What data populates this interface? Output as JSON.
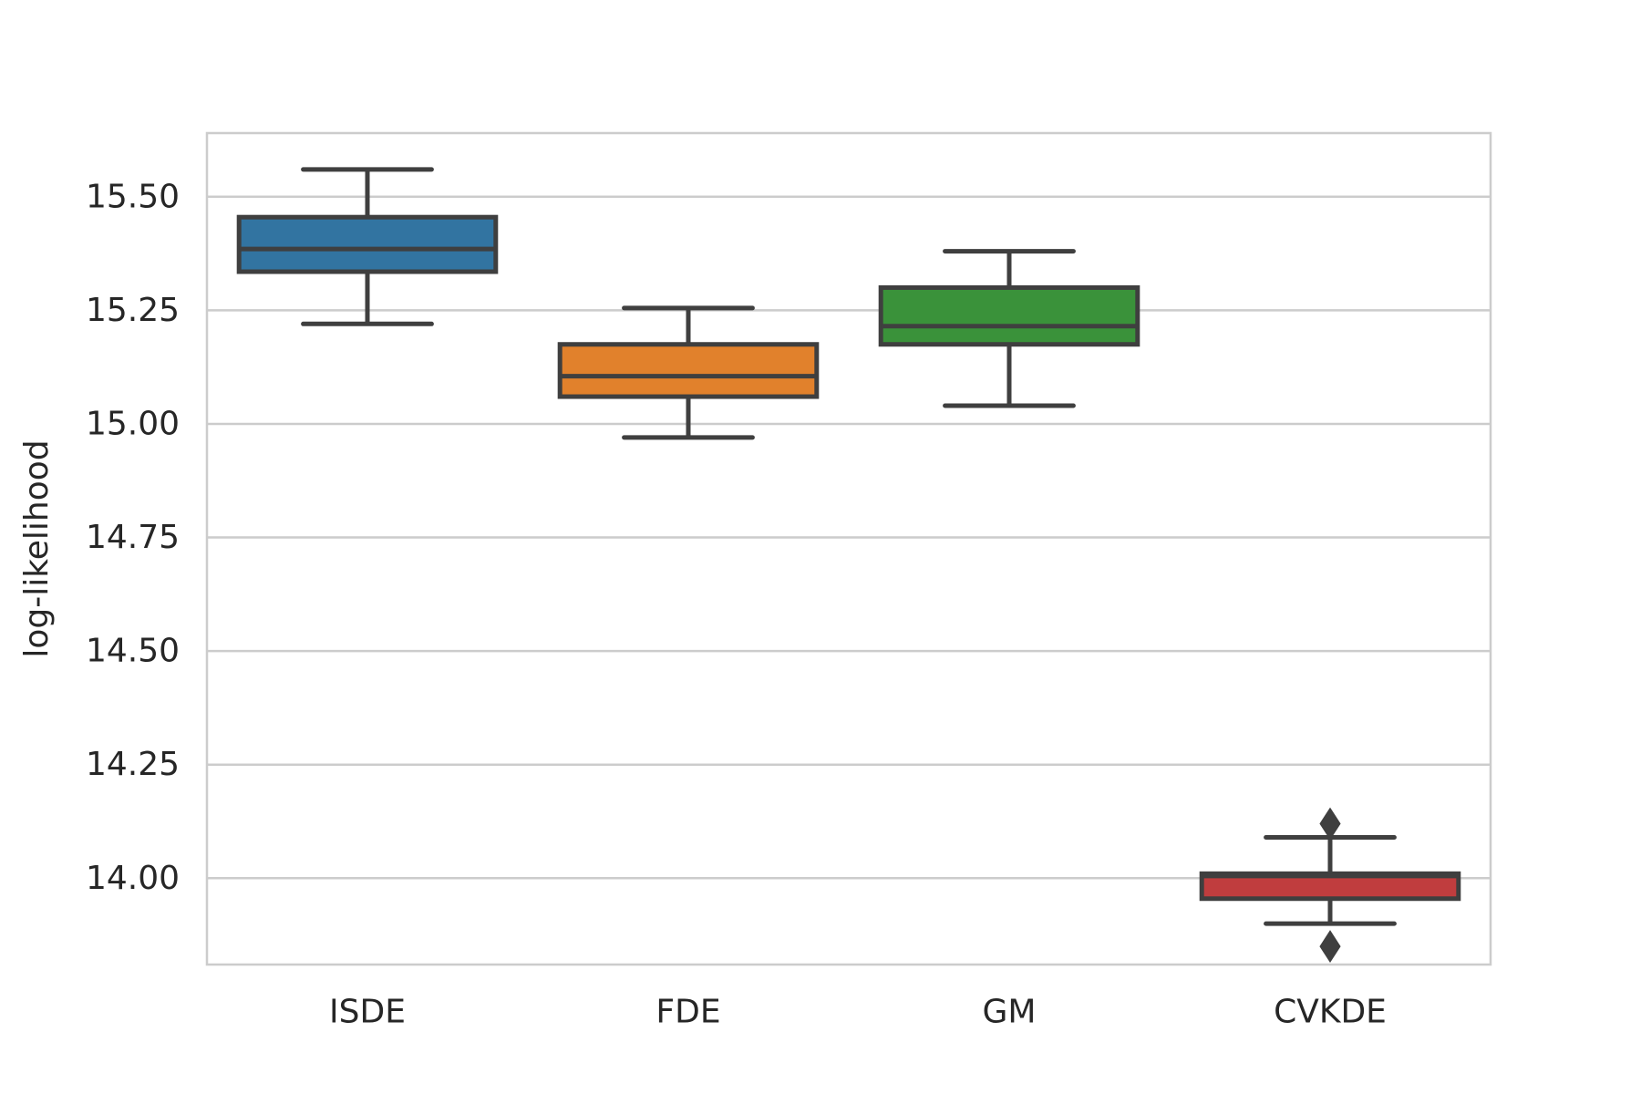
{
  "chart_data": {
    "type": "box",
    "title": "",
    "xlabel": "",
    "ylabel": "log-likelihood",
    "ylim": [
      13.81,
      15.64
    ],
    "yticks": [
      14.0,
      14.25,
      14.5,
      14.75,
      15.0,
      15.25,
      15.5
    ],
    "ytick_labels": [
      "14.00",
      "14.25",
      "14.50",
      "14.75",
      "15.00",
      "15.25",
      "15.50"
    ],
    "grid": "horizontal",
    "categories": [
      "ISDE",
      "FDE",
      "GM",
      "CVKDE"
    ],
    "boxes": [
      {
        "category": "ISDE",
        "whisker_low": 15.22,
        "q1": 15.335,
        "median": 15.385,
        "q3": 15.455,
        "whisker_high": 15.56,
        "outliers": [],
        "color": "#3274a1"
      },
      {
        "category": "FDE",
        "whisker_low": 14.97,
        "q1": 15.06,
        "median": 15.105,
        "q3": 15.175,
        "whisker_high": 15.255,
        "outliers": [],
        "color": "#e1812c"
      },
      {
        "category": "GM",
        "whisker_low": 15.04,
        "q1": 15.175,
        "median": 15.215,
        "q3": 15.3,
        "whisker_high": 15.38,
        "outliers": [],
        "color": "#3a923a"
      },
      {
        "category": "CVKDE",
        "whisker_low": 13.9,
        "q1": 13.955,
        "median": 14.005,
        "q3": 14.01,
        "whisker_high": 14.09,
        "outliers": [
          14.12,
          13.85
        ],
        "color": "#c03d3e"
      }
    ]
  }
}
